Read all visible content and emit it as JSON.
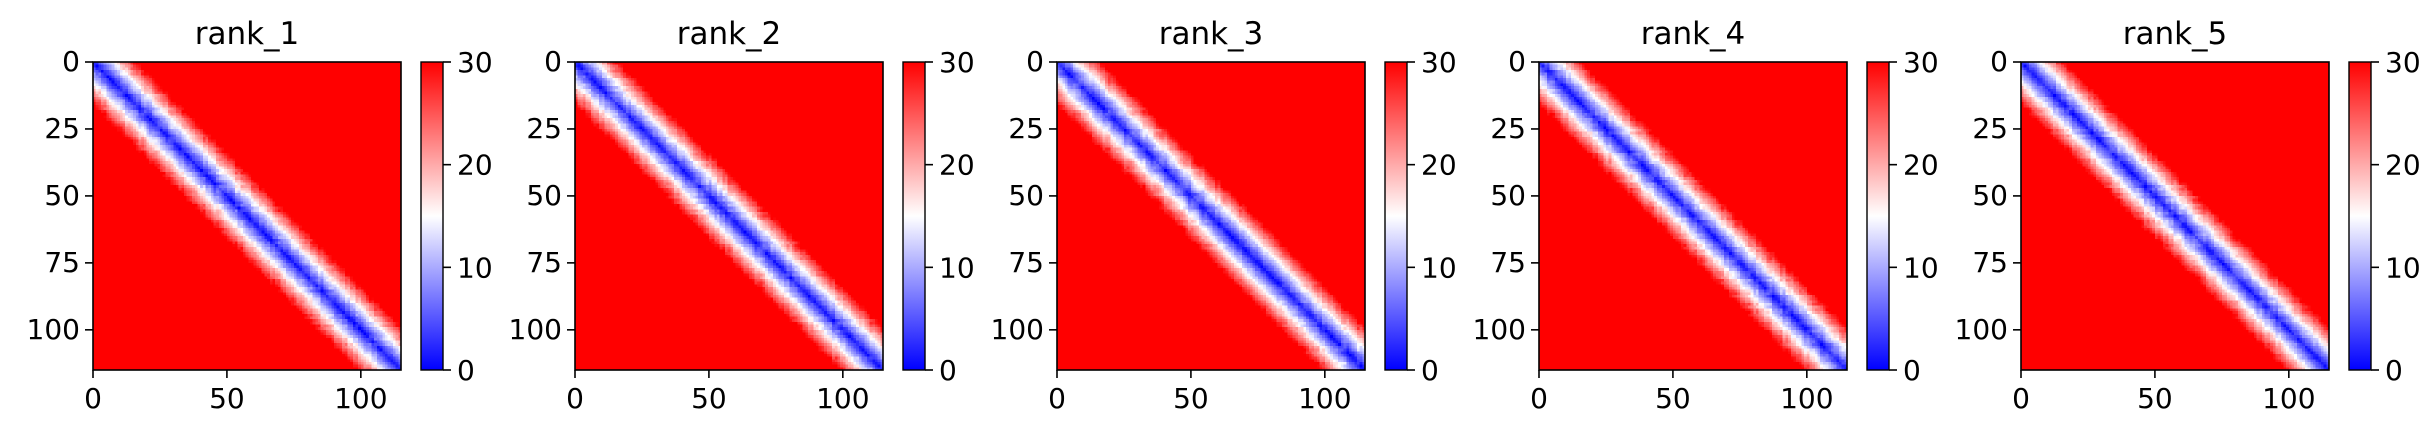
{
  "chart_data": [
    {
      "type": "heatmap",
      "title": "rank_1",
      "matrix_size": 115,
      "x_ticks": [
        "0",
        "50",
        "100"
      ],
      "y_ticks": [
        "0",
        "25",
        "50",
        "75",
        "100"
      ],
      "xlim": [
        0,
        115
      ],
      "ylim": [
        115,
        0
      ],
      "colorbar": {
        "min": 0,
        "max": 30,
        "ticks": [
          "0",
          "10",
          "20",
          "30"
        ],
        "colormap": "bwr"
      },
      "diagonal_band": "blue (low values) along the main diagonal, white transition near diagonal, red (saturated 30) away from diagonal"
    },
    {
      "type": "heatmap",
      "title": "rank_2",
      "matrix_size": 115,
      "x_ticks": [
        "0",
        "50",
        "100"
      ],
      "y_ticks": [
        "0",
        "25",
        "50",
        "75",
        "100"
      ],
      "xlim": [
        0,
        115
      ],
      "ylim": [
        115,
        0
      ],
      "colorbar": {
        "min": 0,
        "max": 30,
        "ticks": [
          "0",
          "10",
          "20",
          "30"
        ],
        "colormap": "bwr"
      },
      "diagonal_band": "blue (low values) along the main diagonal, white transition near diagonal, red (saturated 30) away from diagonal"
    },
    {
      "type": "heatmap",
      "title": "rank_3",
      "matrix_size": 115,
      "x_ticks": [
        "0",
        "50",
        "100"
      ],
      "y_ticks": [
        "0",
        "25",
        "50",
        "75",
        "100"
      ],
      "xlim": [
        0,
        115
      ],
      "ylim": [
        115,
        0
      ],
      "colorbar": {
        "min": 0,
        "max": 30,
        "ticks": [
          "0",
          "10",
          "20",
          "30"
        ],
        "colormap": "bwr"
      },
      "diagonal_band": "blue (low values) along the main diagonal, white transition near diagonal, red (saturated 30) away from diagonal"
    },
    {
      "type": "heatmap",
      "title": "rank_4",
      "matrix_size": 115,
      "x_ticks": [
        "0",
        "50",
        "100"
      ],
      "y_ticks": [
        "0",
        "25",
        "50",
        "75",
        "100"
      ],
      "xlim": [
        0,
        115
      ],
      "ylim": [
        115,
        0
      ],
      "colorbar": {
        "min": 0,
        "max": 30,
        "ticks": [
          "0",
          "10",
          "20",
          "30"
        ],
        "colormap": "bwr"
      },
      "diagonal_band": "blue (low values) along the main diagonal, white transition near diagonal, red (saturated 30) away from diagonal"
    },
    {
      "type": "heatmap",
      "title": "rank_5",
      "matrix_size": 115,
      "x_ticks": [
        "0",
        "50",
        "100"
      ],
      "y_ticks": [
        "0",
        "25",
        "50",
        "75",
        "100"
      ],
      "xlim": [
        0,
        115
      ],
      "ylim": [
        115,
        0
      ],
      "colorbar": {
        "min": 0,
        "max": 30,
        "ticks": [
          "0",
          "10",
          "20",
          "30"
        ],
        "colormap": "bwr"
      },
      "diagonal_band": "blue (low values) along the main diagonal, white transition near diagonal, red (saturated 30) away from diagonal"
    }
  ],
  "colors": {
    "low": "#0000ff",
    "mid": "#ffffff",
    "high": "#ff0000",
    "axis": "#000000"
  }
}
